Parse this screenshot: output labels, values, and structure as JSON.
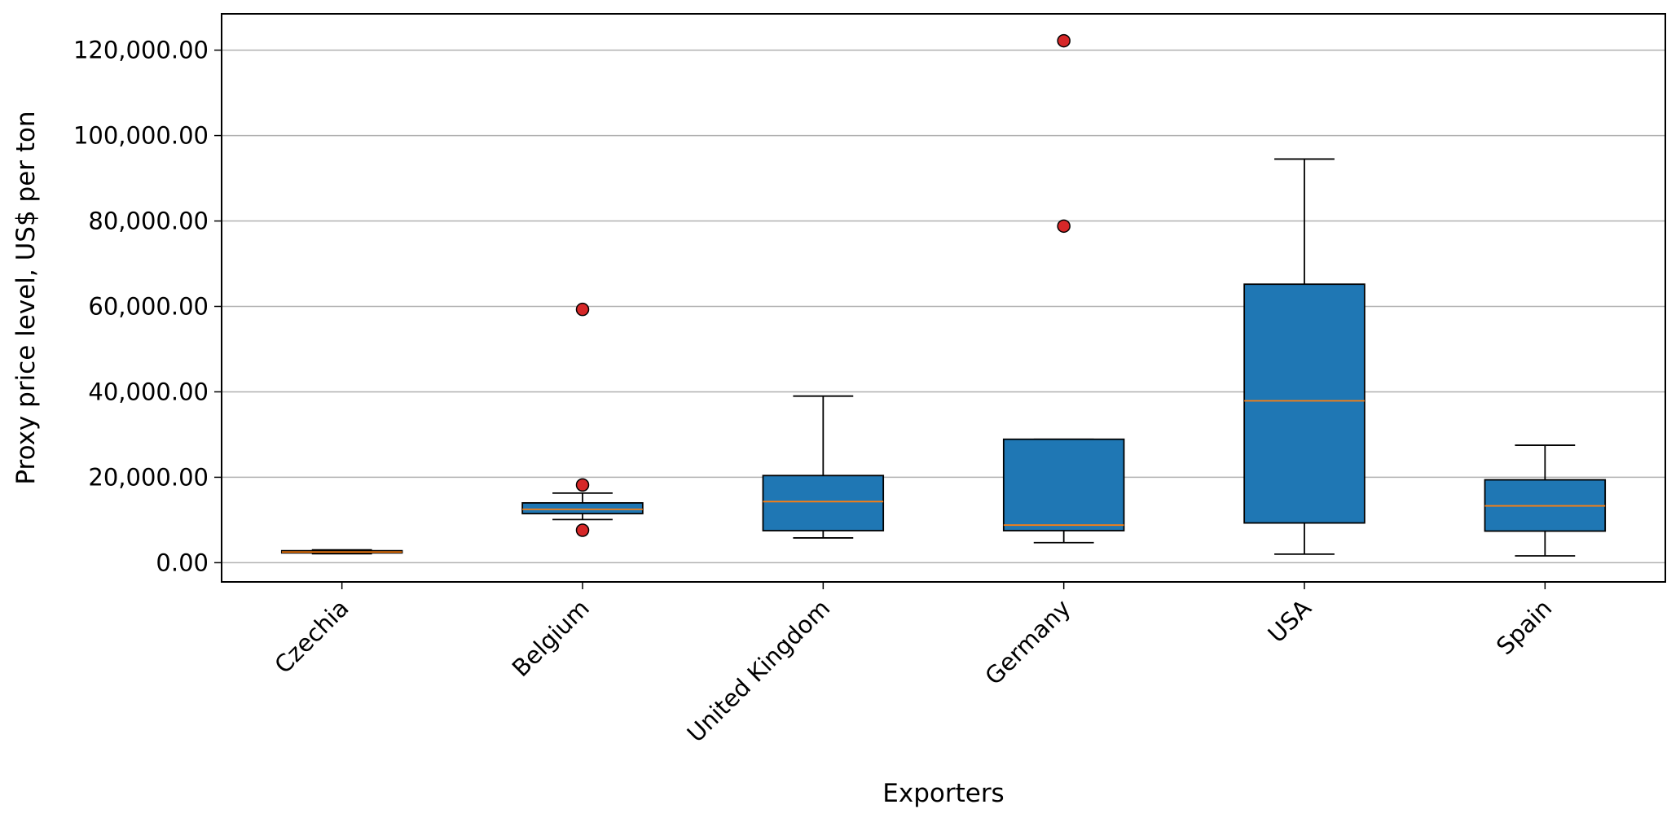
{
  "chart_data": {
    "type": "box",
    "title": "",
    "xlabel": "Exporters",
    "ylabel": "Proxy price level, US$ per ton",
    "ylim": [
      -4500,
      128500
    ],
    "yticks": [
      0,
      20000,
      40000,
      60000,
      80000,
      100000,
      120000
    ],
    "ytick_labels": [
      "0.00",
      "20,000.00",
      "40,000.00",
      "60,000.00",
      "80,000.00",
      "100,000.00",
      "120,000.00"
    ],
    "grid": "horizontal",
    "categories": [
      "Czechia",
      "Belgium",
      "United Kingdom",
      "Germany",
      "USA",
      "Spain"
    ],
    "boxes": [
      {
        "category": "Czechia",
        "whisker_low": 2100,
        "q1": 2300,
        "median": 2500,
        "q3": 2800,
        "whisker_high": 3000,
        "outliers": []
      },
      {
        "category": "Belgium",
        "whisker_low": 10100,
        "q1": 11500,
        "median": 12500,
        "q3": 14000,
        "whisker_high": 16300,
        "outliers": [
          59300,
          18200,
          7600
        ]
      },
      {
        "category": "United Kingdom",
        "whisker_low": 5800,
        "q1": 7500,
        "median": 14300,
        "q3": 20400,
        "whisker_high": 39000,
        "outliers": []
      },
      {
        "category": "Germany",
        "whisker_low": 4700,
        "q1": 7500,
        "median": 8800,
        "q3": 28900,
        "whisker_high": 28900,
        "outliers": [
          122200,
          78800
        ]
      },
      {
        "category": "USA",
        "whisker_low": 2000,
        "q1": 9300,
        "median": 37900,
        "q3": 65200,
        "whisker_high": 94500,
        "outliers": []
      },
      {
        "category": "Spain",
        "whisker_low": 1600,
        "q1": 7400,
        "median": 13300,
        "q3": 19400,
        "whisker_high": 27500,
        "outliers": []
      }
    ],
    "colors": {
      "box_fill": "#1f77b4",
      "median_line": "#ff7f0e",
      "outlier_fill": "#d62728",
      "grid": "#b0b0b0",
      "frame": "#000000"
    }
  }
}
